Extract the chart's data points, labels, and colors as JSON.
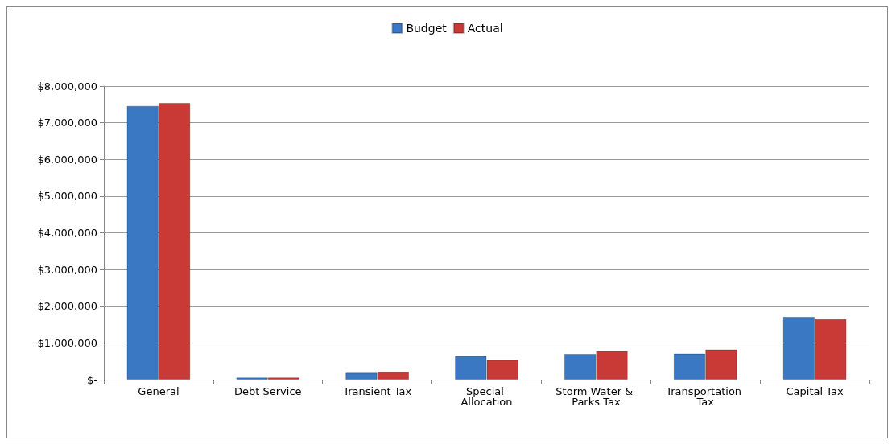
{
  "chart_data": {
    "type": "bar",
    "categories": [
      "General",
      "Debt Service",
      "Transient Tax",
      "Special Allocation",
      "Storm Water & Parks Tax",
      "Transportation Tax",
      "Capital Tax"
    ],
    "series": [
      {
        "name": "Budget",
        "color": "#3a78c3",
        "values": [
          7460000,
          60000,
          190000,
          650000,
          700000,
          710000,
          1710000
        ]
      },
      {
        "name": "Actual",
        "color": "#c93a37",
        "values": [
          7540000,
          60000,
          220000,
          540000,
          780000,
          820000,
          1650000
        ]
      }
    ],
    "ylim": [
      0,
      8000000
    ],
    "yticks": [
      {
        "value": 0,
        "label": "$-"
      },
      {
        "value": 1000000,
        "label": "$1,000,000"
      },
      {
        "value": 2000000,
        "label": "$2,000,000"
      },
      {
        "value": 3000000,
        "label": "$3,000,000"
      },
      {
        "value": 4000000,
        "label": "$4,000,000"
      },
      {
        "value": 5000000,
        "label": "$5,000,000"
      },
      {
        "value": 6000000,
        "label": "$6,000,000"
      },
      {
        "value": 7000000,
        "label": "$7,000,000"
      },
      {
        "value": 8000000,
        "label": "$8,000,000"
      }
    ],
    "grid": "y",
    "legend": "top"
  }
}
